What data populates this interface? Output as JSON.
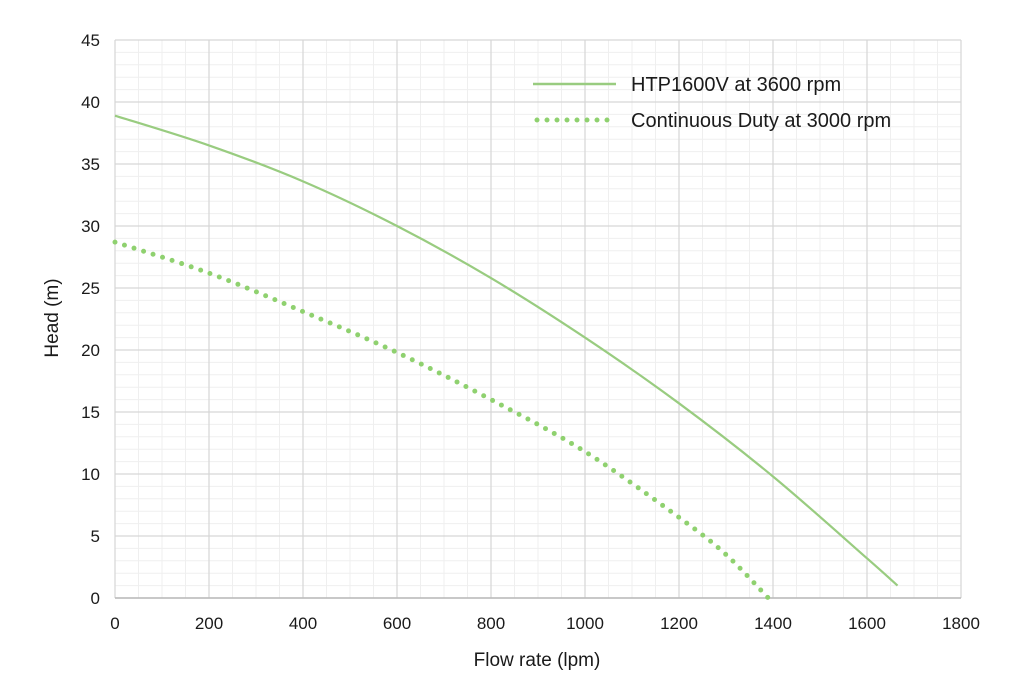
{
  "chart_data": {
    "type": "line",
    "xlabel": "Flow rate (lpm)",
    "ylabel": "Head (m)",
    "xlim": [
      0,
      1800
    ],
    "ylim": [
      0,
      45
    ],
    "x_ticks": [
      0,
      200,
      400,
      600,
      800,
      1000,
      1200,
      1400,
      1600,
      1800
    ],
    "y_ticks": [
      0,
      5,
      10,
      15,
      20,
      25,
      30,
      35,
      40,
      45
    ],
    "x_tick_labels": [
      "0",
      "200",
      "400",
      "600",
      "800",
      "1000",
      "1200",
      "1400",
      "1600",
      "1800"
    ],
    "y_tick_labels": [
      "0",
      "5",
      "10",
      "15",
      "20",
      "25",
      "30",
      "35",
      "40",
      "45"
    ],
    "grid": true,
    "minor_grid": true,
    "legend_position": "top-right",
    "series": [
      {
        "name": "HTP1600V at 3600 rpm",
        "style": "solid",
        "color": "#99cc80",
        "x": [
          0,
          200,
          400,
          600,
          800,
          1000,
          1200,
          1400,
          1600,
          1665
        ],
        "y": [
          38.9,
          36.5,
          33.6,
          30.0,
          25.8,
          21.0,
          15.7,
          9.8,
          3.2,
          1.0
        ]
      },
      {
        "name": "Continuous Duty at 3000 rpm",
        "style": "dotted",
        "color": "#8fd16f",
        "x": [
          0,
          200,
          400,
          600,
          800,
          1000,
          1200,
          1300,
          1390
        ],
        "y": [
          28.7,
          26.2,
          23.1,
          19.8,
          16.0,
          11.8,
          6.5,
          3.5,
          0.0
        ]
      }
    ]
  }
}
